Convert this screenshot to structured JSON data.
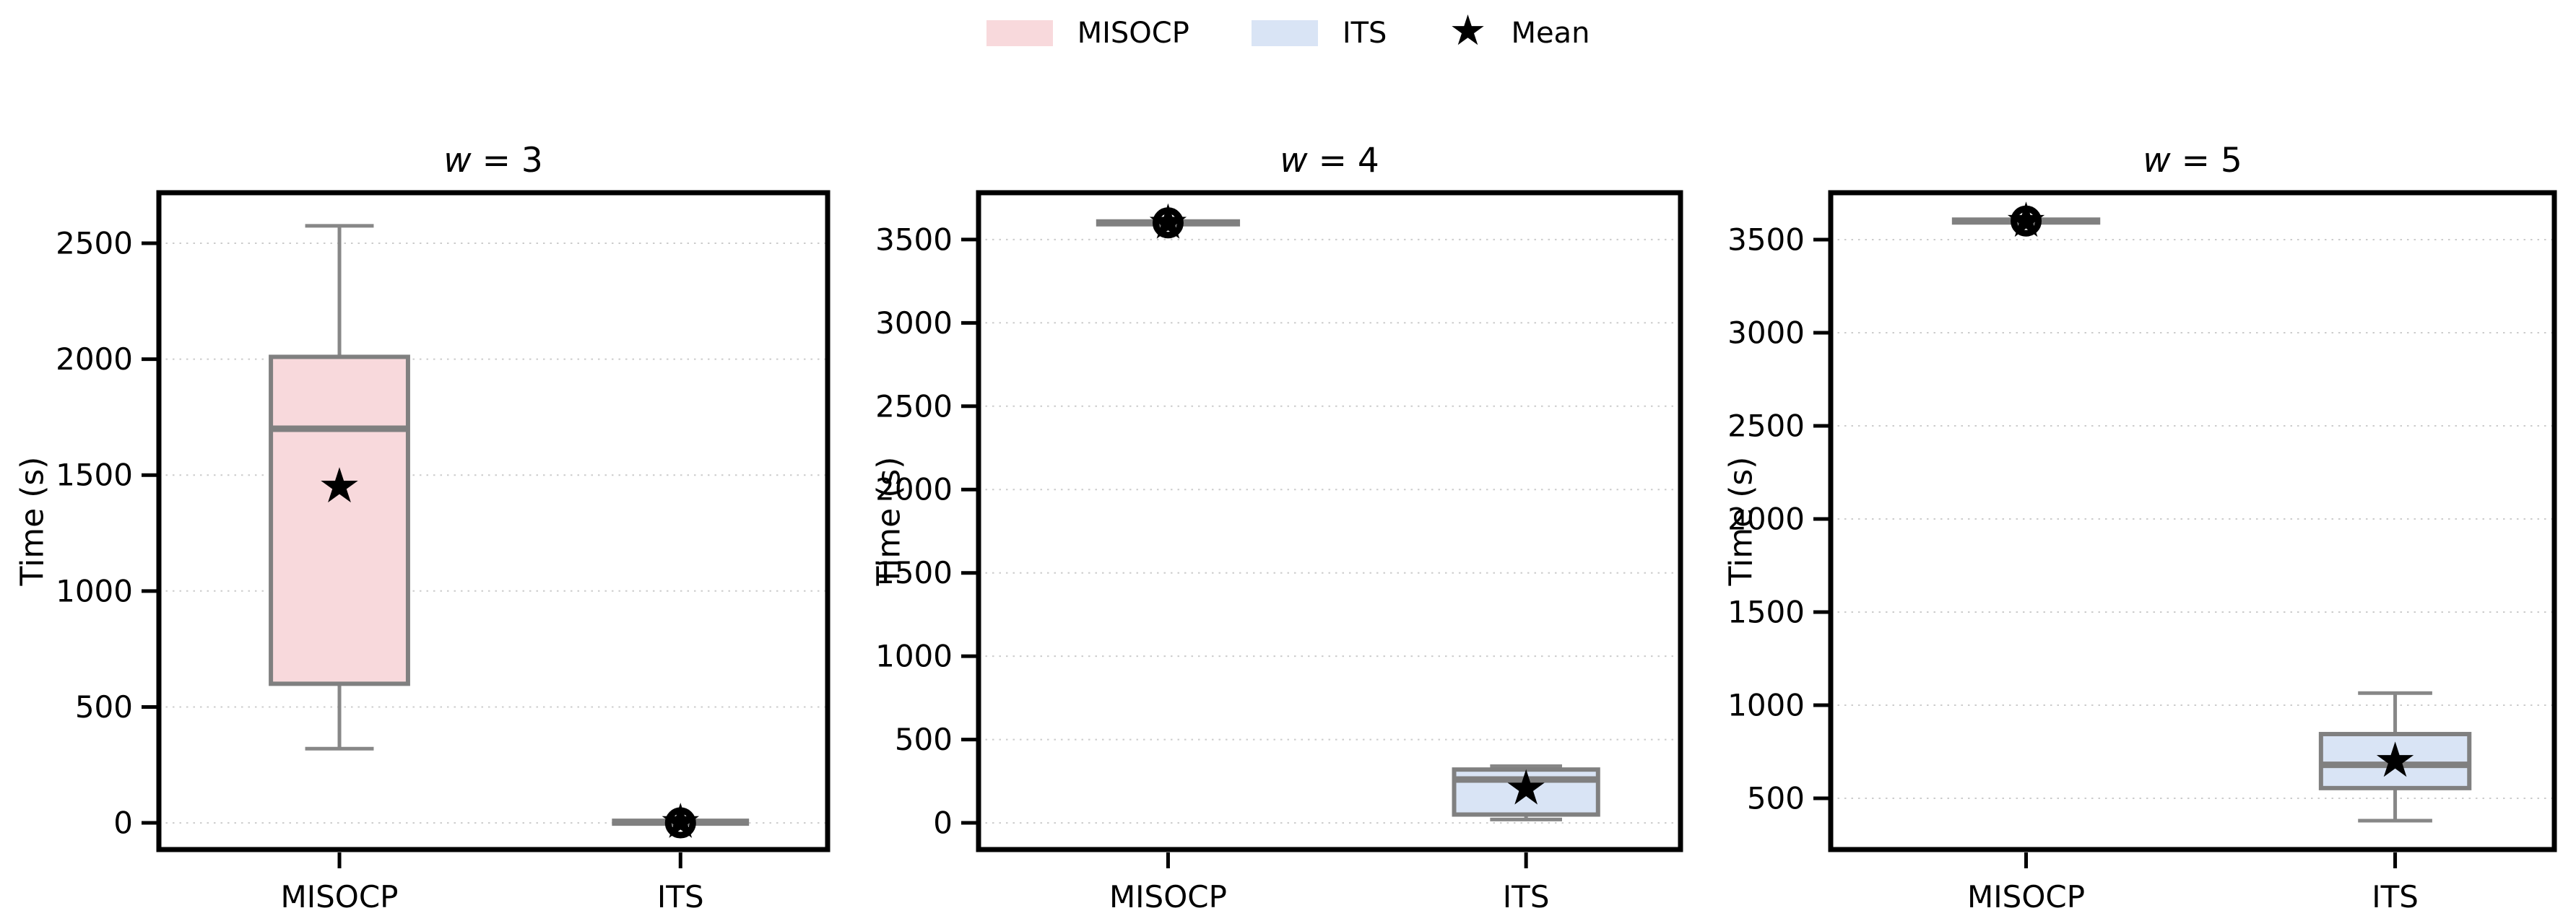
{
  "legend": {
    "items": [
      {
        "label": "MISOCP",
        "swatch": "#f8d9dc",
        "type": "patch"
      },
      {
        "label": "ITS",
        "swatch": "#d9e4f5",
        "type": "patch"
      },
      {
        "label": "Mean",
        "swatch": null,
        "type": "star"
      }
    ]
  },
  "icons": {
    "mean_star": "★"
  },
  "styles": {
    "box_edge": "#808080",
    "whisker": "#878787",
    "median": "#808080",
    "mean_marker": "#000000",
    "outlier": "#000000",
    "grid": "#cccccc",
    "spine": "#000000",
    "text": "#000000",
    "misocp_fill": "#f8d9dc",
    "its_fill": "#d9e4f5"
  },
  "chart_data": [
    {
      "type": "boxplot",
      "title": "w = 3",
      "ylabel": "Time (s)",
      "categories": [
        "MISOCP",
        "ITS"
      ],
      "ylim": [
        -115,
        2718
      ],
      "yticks": [
        0,
        500,
        1000,
        1500,
        2000,
        2500
      ],
      "grid": true,
      "legend_position": "top-center",
      "series": [
        {
          "name": "MISOCP",
          "fill": "#f8d9dc",
          "whislo": 320,
          "q1": 600,
          "med": 1700,
          "q3": 2010,
          "whishi": 2575,
          "mean": 1450,
          "fliers": []
        },
        {
          "name": "ITS",
          "fill": "#d9e4f5",
          "whislo": 0,
          "q1": 0,
          "med": 3,
          "q3": 6,
          "whishi": 10,
          "mean": 3,
          "fliers": [
            0
          ]
        }
      ]
    },
    {
      "type": "boxplot",
      "title": "w = 4",
      "ylabel": "Time (s)",
      "categories": [
        "MISOCP",
        "ITS"
      ],
      "ylim": [
        -160,
        3781
      ],
      "yticks": [
        0,
        500,
        1000,
        1500,
        2000,
        2500,
        3000,
        3500
      ],
      "grid": true,
      "series": [
        {
          "name": "MISOCP",
          "fill": "#f8d9dc",
          "whislo": 3600,
          "q1": 3600,
          "med": 3600,
          "q3": 3600,
          "whishi": 3600,
          "mean": 3600,
          "fliers": [
            3600
          ]
        },
        {
          "name": "ITS",
          "fill": "#d9e4f5",
          "whislo": 20,
          "q1": 50,
          "med": 260,
          "q3": 320,
          "whishi": 340,
          "mean": 205,
          "fliers": []
        }
      ]
    },
    {
      "type": "boxplot",
      "title": "w = 5",
      "ylabel": "Time (s)",
      "categories": [
        "MISOCP",
        "ITS"
      ],
      "ylim": [
        225,
        3752
      ],
      "yticks": [
        500,
        1000,
        1500,
        2000,
        2500,
        3000,
        3500
      ],
      "grid": true,
      "series": [
        {
          "name": "MISOCP",
          "fill": "#f8d9dc",
          "whislo": 3600,
          "q1": 3600,
          "med": 3600,
          "q3": 3600,
          "whishi": 3600,
          "mean": 3600,
          "fliers": [
            3600
          ]
        },
        {
          "name": "ITS",
          "fill": "#d9e4f5",
          "whislo": 380,
          "q1": 555,
          "med": 680,
          "q3": 845,
          "whishi": 1065,
          "mean": 700,
          "fliers": []
        }
      ]
    }
  ]
}
